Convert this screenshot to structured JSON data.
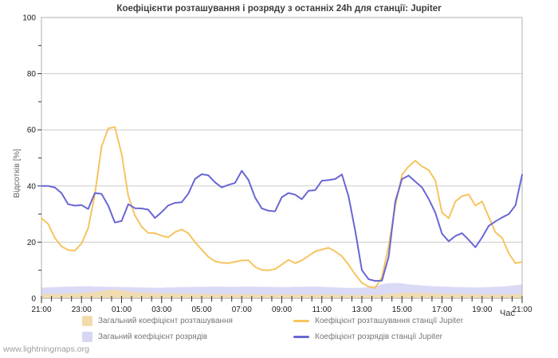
{
  "page": {
    "footer_link": "www.lightningmaps.org"
  },
  "chart_data": {
    "type": "line",
    "title": "Коефіцієнти розташування і розряду з останніх 24h для станції: Jupiter",
    "xlabel": "Час",
    "ylabel": "Відсотків  [%]",
    "ylim": [
      0,
      100
    ],
    "grid": "horizontal gridlines at 20,40,60,80",
    "legend_position": "bottom",
    "x_unit": "minutes after 21:00, spanning 24h",
    "x_tick_labels": [
      "21:00",
      "23:00",
      "01:00",
      "03:00",
      "05:00",
      "07:00",
      "09:00",
      "11:00",
      "13:00",
      "15:00",
      "17:00",
      "19:00",
      "21:00"
    ],
    "x_major_tick_every_min": 120,
    "x_minor_tick_every_min": 30,
    "y_major_ticks": [
      0,
      20,
      40,
      60,
      80,
      100
    ],
    "y_minor_ticks": [
      10,
      30,
      50,
      70,
      90
    ],
    "colors": {
      "grid": "#cccccc",
      "border": "#b0b0b0",
      "tick": "#333333",
      "tick_label": "#1a1a1a",
      "background": "#ffffff"
    },
    "x": [
      0,
      20,
      40,
      60,
      80,
      100,
      120,
      140,
      160,
      180,
      200,
      220,
      240,
      260,
      280,
      300,
      320,
      340,
      360,
      380,
      400,
      420,
      440,
      460,
      480,
      500,
      520,
      540,
      560,
      580,
      600,
      620,
      640,
      660,
      680,
      700,
      720,
      740,
      760,
      780,
      800,
      820,
      840,
      860,
      880,
      900,
      920,
      940,
      960,
      980,
      1000,
      1020,
      1040,
      1060,
      1080,
      1100,
      1120,
      1140,
      1160,
      1180,
      1200,
      1220,
      1240,
      1260,
      1280,
      1300,
      1320,
      1340,
      1360,
      1380,
      1400,
      1420,
      1440
    ],
    "series": [
      {
        "name": "Загальний коефіцієнт розташування",
        "type": "area",
        "color": "#f3dcab",
        "values": [
          1.5,
          1.5,
          1.5,
          1.6,
          1.7,
          1.8,
          1.9,
          2.0,
          2.3,
          2.6,
          2.9,
          3.0,
          2.8,
          2.5,
          2.2,
          2.0,
          1.9,
          1.8,
          1.8,
          1.7,
          1.7,
          1.6,
          1.6,
          1.6,
          1.5,
          1.5,
          1.5,
          1.5,
          1.5,
          1.5,
          1.5,
          1.5,
          1.4,
          1.4,
          1.4,
          1.4,
          1.4,
          1.4,
          1.4,
          1.4,
          1.4,
          1.4,
          1.4,
          1.3,
          1.3,
          1.3,
          1.2,
          1.2,
          1.2,
          1.2,
          1.3,
          1.4,
          1.6,
          1.8,
          1.9,
          2.0,
          2.0,
          1.9,
          1.8,
          1.7,
          1.6,
          1.6,
          1.5,
          1.5,
          1.5,
          1.5,
          1.4,
          1.4,
          1.4,
          1.4,
          1.4,
          1.5,
          1.5
        ]
      },
      {
        "name": "Коефіцієнт розташування станції Jupiter",
        "type": "line",
        "color": "#f6c45f",
        "values": [
          28.5,
          26.5,
          21.5,
          18.5,
          17.2,
          17.0,
          19.5,
          25.0,
          37.0,
          54.0,
          60.5,
          61.0,
          51.5,
          36.5,
          29.5,
          25.5,
          23.3,
          23.2,
          22.3,
          21.7,
          23.6,
          24.5,
          23.2,
          20.0,
          17.3,
          14.8,
          13.2,
          12.7,
          12.5,
          13.0,
          13.5,
          13.5,
          11.2,
          10.1,
          10.0,
          10.4,
          12.0,
          13.7,
          12.5,
          13.5,
          15.1,
          16.7,
          17.4,
          18.0,
          16.7,
          15.0,
          12.0,
          8.5,
          5.5,
          4.2,
          3.7,
          7.5,
          18.5,
          33.0,
          44.0,
          47.0,
          49.0,
          47.0,
          45.7,
          42.0,
          30.5,
          28.5,
          34.5,
          36.4,
          37.0,
          33.0,
          34.5,
          29.0,
          23.5,
          21.5,
          16.0,
          12.5,
          13.0
        ]
      },
      {
        "name": "Загаьний коефіцієнт розрядів",
        "type": "area",
        "color": "#d6d6f5",
        "values": [
          3.8,
          3.9,
          4.0,
          4.1,
          4.2,
          4.2,
          4.3,
          4.3,
          4.2,
          4.2,
          4.1,
          4.1,
          4.0,
          4.0,
          3.9,
          3.9,
          3.8,
          3.8,
          3.8,
          3.9,
          3.9,
          4.0,
          4.0,
          4.1,
          4.1,
          4.2,
          4.2,
          4.2,
          4.1,
          4.1,
          4.2,
          4.2,
          4.2,
          4.1,
          4.1,
          4.0,
          4.0,
          4.0,
          4.1,
          4.1,
          4.2,
          4.2,
          4.1,
          4.0,
          3.9,
          3.8,
          3.7,
          3.7,
          3.8,
          4.0,
          4.5,
          5.0,
          5.4,
          5.5,
          5.3,
          5.0,
          4.8,
          4.6,
          4.4,
          4.3,
          4.2,
          4.1,
          4.0,
          4.0,
          3.9,
          3.9,
          3.9,
          4.0,
          4.1,
          4.2,
          4.4,
          4.7,
          5.0
        ]
      },
      {
        "name": "Коефіцієнт розрядів станції Jupiter",
        "type": "line",
        "color": "#6966d4",
        "values": [
          40.0,
          40.0,
          39.5,
          37.5,
          33.5,
          33.0,
          33.2,
          31.8,
          37.5,
          37.2,
          33.0,
          27.0,
          27.5,
          33.5,
          32.1,
          32.0,
          31.6,
          28.6,
          30.7,
          33.1,
          34.0,
          34.2,
          37.3,
          42.5,
          44.2,
          43.8,
          41.3,
          39.5,
          40.4,
          41.1,
          45.4,
          42.2,
          35.9,
          32.0,
          31.2,
          31.0,
          36.0,
          37.5,
          36.9,
          35.3,
          38.3,
          38.5,
          41.9,
          42.1,
          42.5,
          44.1,
          36.4,
          24.1,
          10.0,
          6.8,
          6.2,
          6.3,
          14.7,
          34.5,
          42.5,
          43.7,
          41.6,
          39.5,
          35.4,
          30.5,
          23.0,
          20.3,
          22.2,
          23.2,
          20.8,
          18.2,
          21.7,
          25.8,
          27.4,
          28.8,
          30.0,
          33.1,
          44.0
        ]
      }
    ]
  }
}
